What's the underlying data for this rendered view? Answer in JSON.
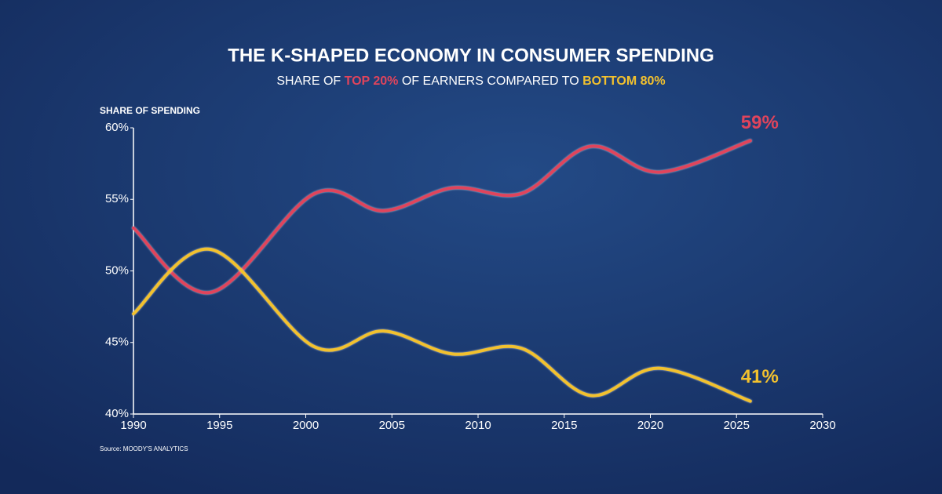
{
  "chart_data": {
    "type": "line",
    "title": "THE K-SHAPED ECONOMY IN CONSUMER SPENDING",
    "subtitle_parts": [
      "SHARE OF",
      "OF EARNERS COMPARED TO"
    ],
    "y_label": "SHARE OF SPENDING",
    "source": "Source: MOODY'S ANALYTICS",
    "x": [
      1990,
      1994.5,
      2000.5,
      2004.5,
      2008.5,
      2012.5,
      2016.5,
      2020.5,
      2025.8
    ],
    "series": [
      {
        "name": "TOP 20%",
        "color": "#e0445c",
        "values": [
          53,
          48.5,
          55.4,
          54.2,
          55.8,
          55.4,
          58.7,
          56.9,
          59.1
        ]
      },
      {
        "name": "BOTTOM 80%",
        "color": "#f2c12e",
        "values": [
          47,
          51.5,
          44.7,
          45.8,
          44.2,
          44.6,
          41.3,
          43.2,
          40.9
        ]
      }
    ],
    "annotations": [
      "59%",
      "41%"
    ],
    "xlim": [
      1990,
      2030
    ],
    "xticks": [
      1990,
      1995,
      2000,
      2005,
      2010,
      2015,
      2020,
      2025,
      2030
    ],
    "ylim": [
      40,
      60
    ],
    "yticks": [
      {
        "value": 40,
        "label": "40%"
      },
      {
        "value": 45,
        "label": "45%"
      },
      {
        "value": 50,
        "label": "50%"
      },
      {
        "value": 55,
        "label": "55%"
      },
      {
        "value": 60,
        "label": "60%"
      }
    ],
    "grid": false
  }
}
